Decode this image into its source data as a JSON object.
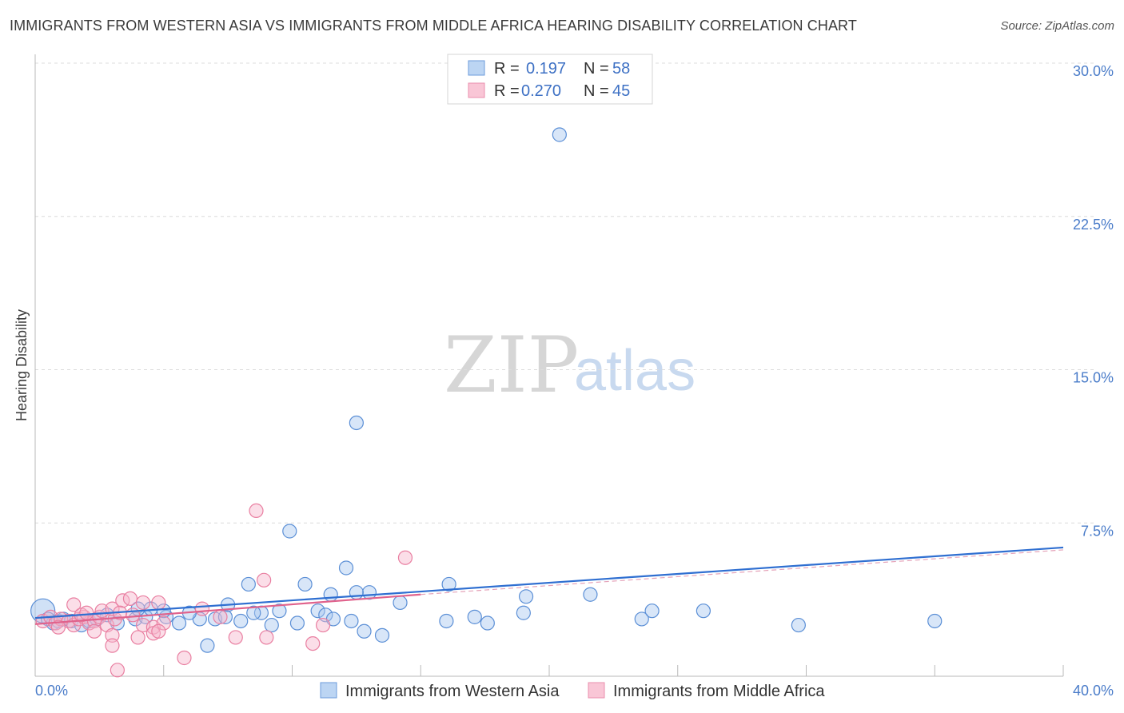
{
  "header": {
    "title": "IMMIGRANTS FROM WESTERN ASIA VS IMMIGRANTS FROM MIDDLE AFRICA HEARING DISABILITY CORRELATION CHART",
    "source": "Source: ZipAtlas.com"
  },
  "watermark": {
    "part1": "ZIP",
    "part2": "atlas"
  },
  "colors": {
    "blue_fill": "#a9c8ef",
    "blue_stroke": "#5b8fd6",
    "blue_line": "#2f6fd1",
    "pink_fill": "#f7b6cb",
    "pink_stroke": "#e97fa1",
    "pink_line": "#e0628c",
    "tick_text": "#4a7cc9",
    "grid": "#dcdcdc"
  },
  "legend": {
    "rows": [
      {
        "r_label": "R =",
        "r_value": "0.197",
        "n_label": "N =",
        "n_value": "58"
      },
      {
        "r_label": "R =",
        "r_value": "0.270",
        "n_label": "N =",
        "n_value": "45"
      }
    ]
  },
  "chart_data": {
    "type": "scatter",
    "title": "IMMIGRANTS FROM WESTERN ASIA VS IMMIGRANTS FROM MIDDLE AFRICA HEARING DISABILITY CORRELATION CHART",
    "xlabel": "",
    "ylabel": "Hearing Disability",
    "xlim": [
      0,
      40
    ],
    "ylim": [
      0,
      30
    ],
    "x_tick_labels": [
      "0.0%",
      "40.0%"
    ],
    "y_ticks": [
      7.5,
      15.0,
      22.5,
      30.0
    ],
    "y_tick_labels": [
      "7.5%",
      "15.0%",
      "22.5%",
      "30.0%"
    ],
    "grid": true,
    "legend_position": "top-center",
    "series": [
      {
        "name": "Immigrants from Western Asia",
        "color": "blue",
        "points": [
          [
            0.3,
            3.2
          ],
          [
            0.5,
            2.8
          ],
          [
            0.7,
            2.6
          ],
          [
            0.9,
            2.7
          ],
          [
            1.1,
            2.8
          ],
          [
            1.4,
            2.7
          ],
          [
            1.8,
            2.5
          ],
          [
            2.1,
            2.7
          ],
          [
            2.4,
            2.8
          ],
          [
            2.8,
            3.0
          ],
          [
            3.2,
            2.6
          ],
          [
            3.9,
            2.8
          ],
          [
            4.3,
            2.9
          ],
          [
            5.1,
            2.9
          ],
          [
            5.6,
            2.6
          ],
          [
            6.4,
            2.8
          ],
          [
            7.0,
            2.8
          ],
          [
            7.4,
            2.9
          ],
          [
            8.0,
            2.7
          ],
          [
            8.8,
            3.1
          ],
          [
            9.2,
            2.5
          ],
          [
            10.2,
            2.6
          ],
          [
            4.0,
            3.3
          ],
          [
            4.5,
            3.3
          ],
          [
            5.0,
            3.2
          ],
          [
            6.0,
            3.1
          ],
          [
            7.5,
            3.5
          ],
          [
            8.5,
            3.1
          ],
          [
            9.5,
            3.2
          ],
          [
            11.0,
            3.2
          ],
          [
            11.3,
            3.0
          ],
          [
            11.6,
            2.8
          ],
          [
            12.3,
            2.7
          ],
          [
            12.8,
            2.2
          ],
          [
            13.5,
            2.0
          ],
          [
            14.2,
            3.6
          ],
          [
            16.0,
            2.7
          ],
          [
            17.1,
            2.9
          ],
          [
            17.6,
            2.6
          ],
          [
            19.0,
            3.1
          ],
          [
            19.1,
            3.9
          ],
          [
            21.6,
            4.0
          ],
          [
            23.6,
            2.8
          ],
          [
            24.0,
            3.2
          ],
          [
            26.0,
            3.2
          ],
          [
            29.7,
            2.5
          ],
          [
            35.0,
            2.7
          ],
          [
            10.5,
            4.5
          ],
          [
            13.0,
            4.1
          ],
          [
            12.5,
            4.1
          ],
          [
            11.5,
            4.0
          ],
          [
            8.3,
            4.5
          ],
          [
            16.1,
            4.5
          ],
          [
            12.1,
            5.3
          ],
          [
            9.9,
            7.1
          ],
          [
            12.5,
            12.4
          ],
          [
            20.4,
            26.5
          ],
          [
            6.7,
            1.5
          ]
        ]
      },
      {
        "name": "Immigrants from Middle Africa",
        "color": "pink",
        "points": [
          [
            0.3,
            2.7
          ],
          [
            0.6,
            2.9
          ],
          [
            0.8,
            2.6
          ],
          [
            1.0,
            2.8
          ],
          [
            1.3,
            2.7
          ],
          [
            1.5,
            2.5
          ],
          [
            1.7,
            2.8
          ],
          [
            1.9,
            2.9
          ],
          [
            2.1,
            2.6
          ],
          [
            2.3,
            2.7
          ],
          [
            2.5,
            2.9
          ],
          [
            2.8,
            2.5
          ],
          [
            3.1,
            2.8
          ],
          [
            1.5,
            3.5
          ],
          [
            1.8,
            3.0
          ],
          [
            2.6,
            3.2
          ],
          [
            3.0,
            3.3
          ],
          [
            3.4,
            3.7
          ],
          [
            3.7,
            3.8
          ],
          [
            4.2,
            3.6
          ],
          [
            4.8,
            3.6
          ],
          [
            3.3,
            3.1
          ],
          [
            2.0,
            3.1
          ],
          [
            3.8,
            3.0
          ],
          [
            4.2,
            2.5
          ],
          [
            4.6,
            2.4
          ],
          [
            5.0,
            2.6
          ],
          [
            6.5,
            3.3
          ],
          [
            7.2,
            2.9
          ],
          [
            2.3,
            2.2
          ],
          [
            3.0,
            2.0
          ],
          [
            4.0,
            1.9
          ],
          [
            4.6,
            2.1
          ],
          [
            3.0,
            1.5
          ],
          [
            7.8,
            1.9
          ],
          [
            9.0,
            1.9
          ],
          [
            10.8,
            1.6
          ],
          [
            11.2,
            2.5
          ],
          [
            8.9,
            4.7
          ],
          [
            14.4,
            5.8
          ],
          [
            8.6,
            8.1
          ],
          [
            5.8,
            0.9
          ],
          [
            3.2,
            0.3
          ],
          [
            4.8,
            2.2
          ],
          [
            0.9,
            2.4
          ]
        ]
      }
    ],
    "trend_lines": [
      {
        "series": "Immigrants from Western Asia",
        "x": [
          0,
          40
        ],
        "y": [
          2.85,
          6.3
        ]
      },
      {
        "series": "Immigrants from Middle Africa",
        "x": [
          0,
          15
        ],
        "y": [
          2.55,
          4.0
        ]
      }
    ]
  },
  "bottom_legend": [
    {
      "label": "Immigrants from Western Asia"
    },
    {
      "label": "Immigrants from Middle Africa"
    }
  ]
}
